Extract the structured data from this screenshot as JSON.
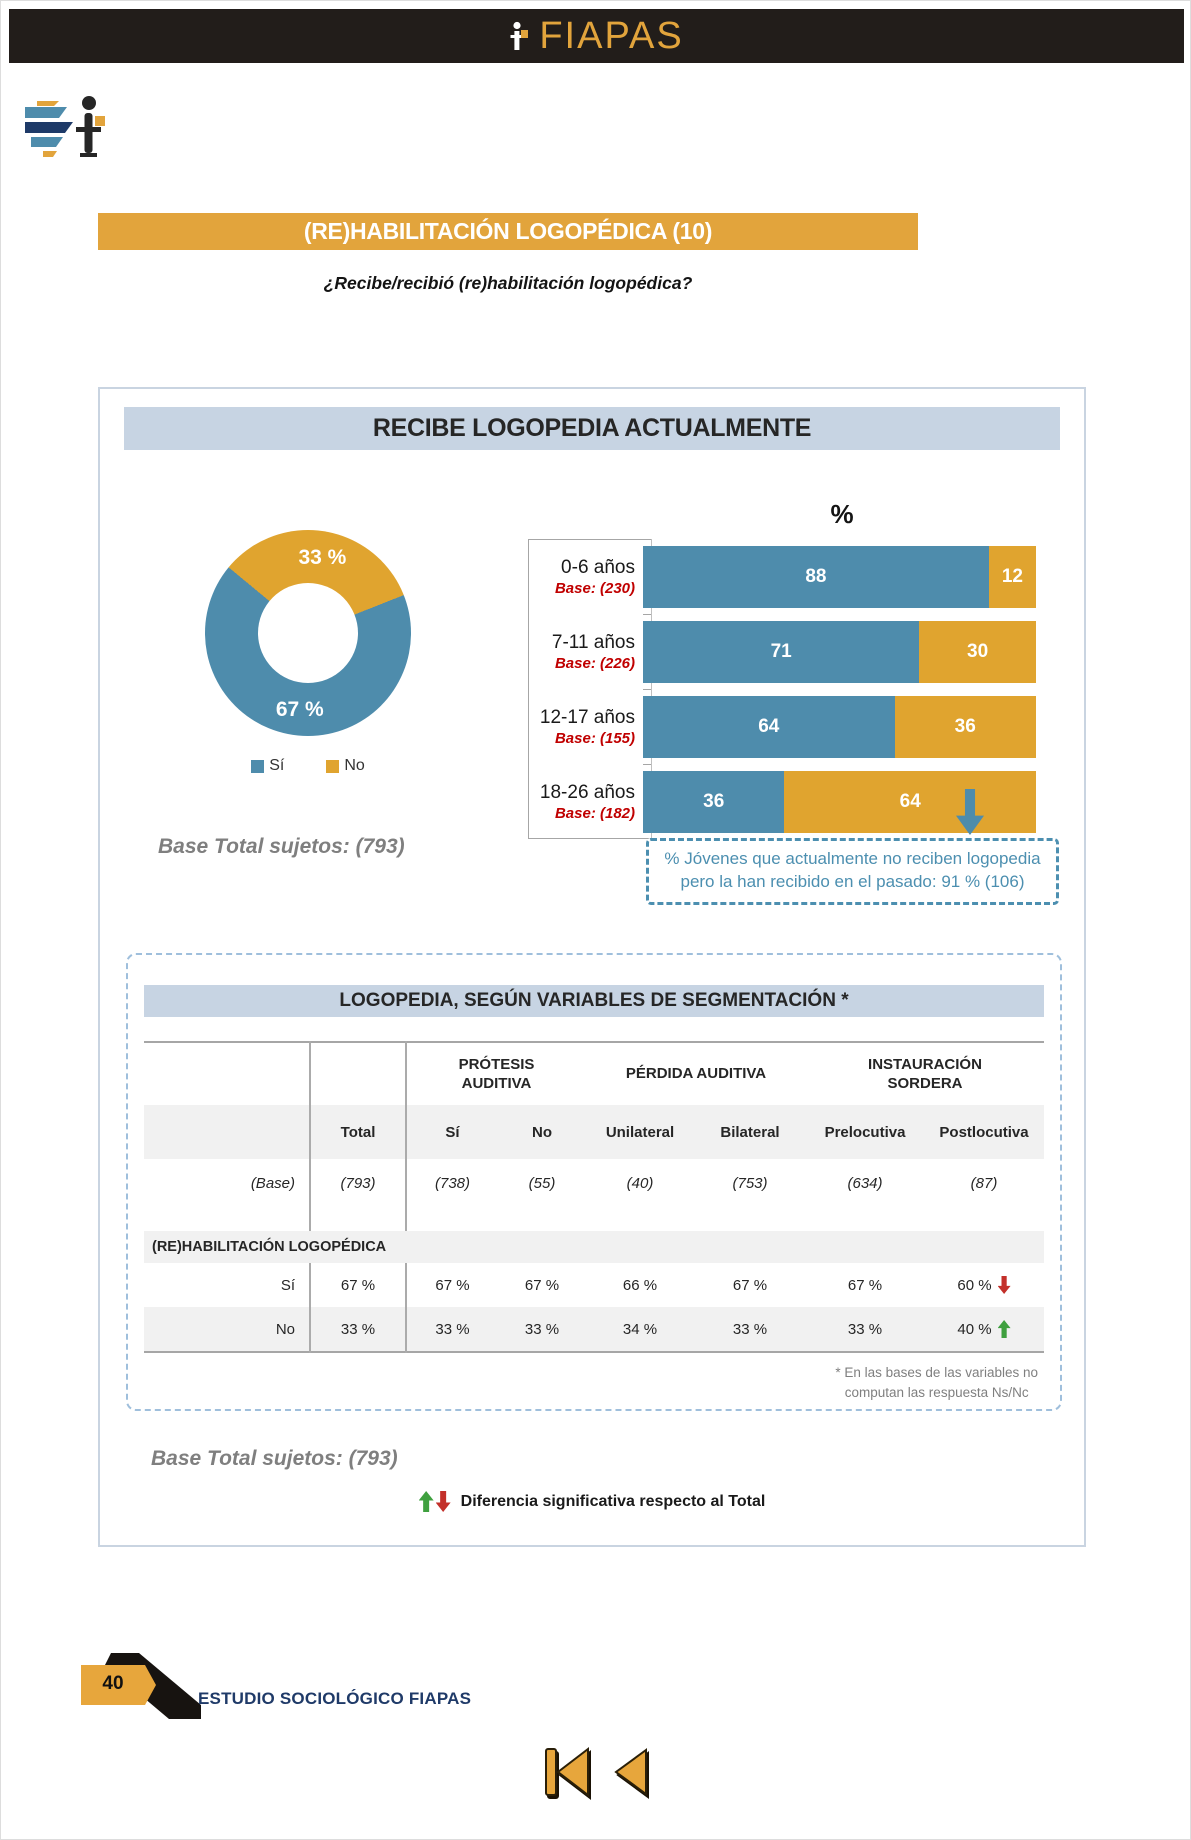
{
  "header": {
    "brand": "FIAPAS"
  },
  "banner": {
    "title": "(RE)HABILITACIÓN LOGOPÉDICA (10)"
  },
  "question": "¿Recibe/recibió (re)habilitación logopédica?",
  "colors": {
    "accent_orange": "#E2A43C",
    "series_blue": "#4E8CAC",
    "series_orange": "#E0A42F",
    "note_blue": "#4C8FB0",
    "sig_red": "#C3302A",
    "sig_green": "#3FA03F"
  },
  "chart_panel": {
    "title": "RECIBE LOGOPEDIA ACTUALMENTE",
    "donut": {
      "slices": [
        {
          "label": "Sí",
          "value": 67,
          "value_label": "67 %"
        },
        {
          "label": "No",
          "value": 33,
          "value_label": "33 %"
        }
      ]
    },
    "legend": [
      {
        "label": "Sí"
      },
      {
        "label": "No"
      }
    ],
    "base_total": "Base Total sujetos: (793)",
    "bars": {
      "unit_label": "%",
      "rows": [
        {
          "label": "0-6 años",
          "base": "Base: (230)",
          "si_val": 88,
          "no_val": 12,
          "si": "88",
          "no": "12"
        },
        {
          "label": "7-11 años",
          "base": "Base: (226)",
          "si_val": 71,
          "no_val": 30,
          "si": "71",
          "no": "30"
        },
        {
          "label": "12-17 años",
          "base": "Base: (155)",
          "si_val": 64,
          "no_val": 36,
          "si": "64",
          "no": "36"
        },
        {
          "label": "18-26 años",
          "base": "Base: (182)",
          "si_val": 36,
          "no_val": 64,
          "si": "36",
          "no": "64"
        }
      ]
    },
    "note": {
      "line1": "% Jóvenes que actualmente no reciben logopedia",
      "line2": "pero la han recibido en el pasado: 91 % (106)"
    }
  },
  "segmentation": {
    "title": "LOGOPEDIA, SEGÚN VARIABLES DE SEGMENTACIÓN *",
    "groups": [
      "PRÓTESIS\nAUDITIVA",
      "PÉRDIDA AUDITIVA",
      "INSTAURACIÓN\nSORDERA"
    ],
    "columns": [
      "Total",
      "Sí",
      "No",
      "Unilateral",
      "Bilateral",
      "Prelocutiva",
      "Postlocutiva"
    ],
    "base_label": "(Base)",
    "base_values": [
      "(793)",
      "(738)",
      "(55)",
      "(40)",
      "(753)",
      "(634)",
      "(87)"
    ],
    "section": "(RE)HABILITACIÓN LOGOPÉDICA",
    "rows": [
      {
        "label": "Sí",
        "values": [
          "67 %",
          "67 %",
          "67 %",
          "66 %",
          "67 %",
          "67 %",
          "60 %"
        ],
        "last_arrow": "down"
      },
      {
        "label": "No",
        "values": [
          "33 %",
          "33 %",
          "33 %",
          "34 %",
          "33 %",
          "33 %",
          "40 %"
        ],
        "last_arrow": "up"
      }
    ],
    "footnote": "* En las bases de las variables no\ncomputan las respuesta Ns/Nc",
    "base_total": "Base Total sujetos: (793)",
    "sig_legend": "Diferencia significativa respecto al Total"
  },
  "footer": {
    "page_number": "40",
    "label": "ESTUDIO SOCIOLÓGICO FIAPAS"
  },
  "icons": {
    "nav_first": "skip-to-first",
    "nav_back": "previous-page"
  },
  "chart_data": [
    {
      "type": "pie",
      "title": "RECIBE LOGOPEDIA ACTUALMENTE",
      "labels": [
        "Sí",
        "No"
      ],
      "values": [
        67,
        33
      ],
      "unit": "%",
      "colors": [
        "#4E8CAC",
        "#E0A42F"
      ],
      "base_total": 793
    },
    {
      "type": "bar",
      "orientation": "horizontal",
      "stacked": true,
      "unit": "%",
      "categories": [
        "0-6 años",
        "7-11 años",
        "12-17 años",
        "18-26 años"
      ],
      "category_bases": [
        230,
        226,
        155,
        182
      ],
      "series": [
        {
          "name": "Sí",
          "values": [
            88,
            71,
            64,
            36
          ]
        },
        {
          "name": "No",
          "values": [
            12,
            30,
            36,
            64
          ]
        }
      ],
      "annotation": "% Jóvenes que actualmente no reciben logopedia pero la han recibido en el pasado: 91 % (106)"
    },
    {
      "type": "table",
      "title": "LOGOPEDIA, SEGÚN VARIABLES DE SEGMENTACIÓN *",
      "columns": [
        "Total",
        "Sí",
        "No",
        "Unilateral",
        "Bilateral",
        "Prelocutiva",
        "Postlocutiva"
      ],
      "base": [
        793,
        738,
        55,
        40,
        753,
        634,
        87
      ],
      "rows": [
        {
          "label": "Sí",
          "values_pct": [
            67,
            67,
            67,
            66,
            67,
            67,
            60
          ],
          "significance_last": "below-total"
        },
        {
          "label": "No",
          "values_pct": [
            33,
            33,
            33,
            34,
            33,
            33,
            40
          ],
          "significance_last": "above-total"
        }
      ]
    }
  ]
}
